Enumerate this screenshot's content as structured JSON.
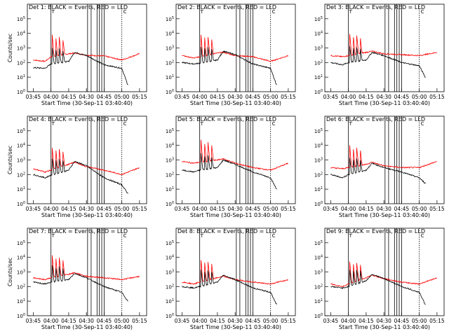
{
  "figure": {
    "start_time_label": "Start Time (30-Sep-11 03:40:40)"
  },
  "colors": {
    "events": "#000000",
    "lld": "#ff0000"
  },
  "chart_data": [
    {
      "type": "line",
      "title": "Det 1: BLACK = Events, RED = LLD",
      "ylabel": "Counts/sec",
      "xlabel": "Start Time (30-Sep-11 03:40:40)",
      "ylim": [
        1,
        1000000
      ],
      "yscale": "log",
      "x_ticks": [
        "03:45",
        "04:00",
        "04:15",
        "04:30",
        "04:45",
        "05:00",
        "05:15"
      ],
      "y_ticks": [
        "10^0",
        "10^1",
        "10^2",
        "10^3",
        "10^4",
        "10^5"
      ],
      "markers": {
        "solid": [
          "04:00",
          "04:31",
          "04:34",
          "04:39",
          "04:41",
          "04:43",
          "04:45"
        ],
        "dotted": [
          "05:00"
        ],
        "labels": [
          "T",
          "C"
        ]
      },
      "series": [
        {
          "name": "Events",
          "color": "#000000",
          "x": [
            "03:45",
            "03:55",
            "04:00",
            "04:15",
            "04:20",
            "04:30",
            "04:45",
            "05:00",
            "05:05"
          ],
          "values": [
            45,
            40,
            80,
            120,
            500,
            300,
            70,
            40,
            3
          ]
        },
        {
          "name": "LLD",
          "color": "#ff0000",
          "x": [
            "03:45",
            "03:55",
            "04:00",
            "04:15",
            "04:20",
            "04:30",
            "04:45",
            "05:00",
            "05:15"
          ],
          "values": [
            150,
            120,
            250,
            400,
            450,
            320,
            280,
            150,
            400
          ]
        }
      ]
    },
    {
      "type": "line",
      "title": "Det 2: BLACK = Events, RED = LLD",
      "ylabel": "",
      "xlabel": "Start Time (30-Sep-11 03:40:40)",
      "ylim": [
        1,
        1000000
      ],
      "yscale": "log",
      "x_ticks": [
        "03:45",
        "04:00",
        "04:15",
        "04:30",
        "04:45",
        "05:00",
        "05:15"
      ],
      "y_ticks": [
        "10^0",
        "10^1",
        "10^2",
        "10^3",
        "10^4",
        "10^5"
      ],
      "markers": {
        "solid": [
          "04:00",
          "04:31",
          "04:34",
          "04:39",
          "04:41",
          "04:43",
          "04:45"
        ],
        "dotted": [
          "05:00"
        ],
        "labels": [
          "T",
          "C"
        ]
      },
      "series": [
        {
          "name": "Events",
          "color": "#000000",
          "x": [
            "03:45",
            "03:55",
            "04:00",
            "04:15",
            "04:20",
            "04:30",
            "04:45",
            "05:00",
            "05:05"
          ],
          "values": [
            100,
            80,
            90,
            150,
            600,
            350,
            80,
            40,
            3
          ]
        },
        {
          "name": "LLD",
          "color": "#ff0000",
          "x": [
            "03:45",
            "03:55",
            "04:00",
            "04:15",
            "04:20",
            "04:30",
            "04:45",
            "05:00",
            "05:15"
          ],
          "values": [
            300,
            200,
            250,
            450,
            500,
            300,
            250,
            120,
            300
          ]
        }
      ]
    },
    {
      "type": "line",
      "title": "Det 3: BLACK = Events, RED = LLD",
      "ylabel": "",
      "xlabel": "Start Time (30-Sep-11 03:40:40)",
      "ylim": [
        1,
        1000000
      ],
      "yscale": "log",
      "x_ticks": [
        "03:45",
        "04:00",
        "04:15",
        "04:30",
        "04:45",
        "05:00",
        "05:15"
      ],
      "y_ticks": [
        "10^0",
        "10^1",
        "10^2",
        "10^3",
        "10^4",
        "10^5"
      ],
      "markers": {
        "solid": [
          "04:00",
          "04:31",
          "04:34",
          "04:39",
          "04:41",
          "04:43",
          "04:45"
        ],
        "dotted": [
          "05:00"
        ],
        "labels": [
          "T",
          "C"
        ]
      },
      "series": [
        {
          "name": "Events",
          "color": "#000000",
          "x": [
            "03:45",
            "03:55",
            "04:00",
            "04:15",
            "04:20",
            "04:30",
            "04:45",
            "05:00",
            "05:05"
          ],
          "values": [
            100,
            70,
            100,
            150,
            500,
            300,
            100,
            60,
            10
          ]
        },
        {
          "name": "LLD",
          "color": "#ff0000",
          "x": [
            "03:45",
            "03:55",
            "04:00",
            "04:15",
            "04:20",
            "04:30",
            "04:45",
            "05:00",
            "05:15"
          ],
          "values": [
            300,
            250,
            300,
            500,
            600,
            400,
            350,
            300,
            500
          ]
        }
      ]
    },
    {
      "type": "line",
      "title": "Det 4: BLACK = Events, RED = LLD",
      "ylabel": "Counts/sec",
      "xlabel": "Start Time (30-Sep-11 03:40:40)",
      "ylim": [
        1,
        1000000
      ],
      "yscale": "log",
      "x_ticks": [
        "03:45",
        "04:00",
        "04:15",
        "04:30",
        "04:45",
        "05:00",
        "05:15"
      ],
      "y_ticks": [
        "10^0",
        "10^1",
        "10^2",
        "10^3",
        "10^4",
        "10^5"
      ],
      "markers": {
        "solid": [
          "04:00",
          "04:31",
          "04:34",
          "04:39",
          "04:41",
          "04:43",
          "04:45"
        ],
        "dotted": [
          "05:00"
        ],
        "labels": [
          "T",
          "C"
        ]
      },
      "series": [
        {
          "name": "Events",
          "color": "#000000",
          "x": [
            "03:45",
            "03:55",
            "04:00",
            "04:15",
            "04:20",
            "04:30",
            "04:45",
            "05:00",
            "05:05"
          ],
          "values": [
            100,
            60,
            90,
            200,
            800,
            400,
            60,
            20,
            5
          ]
        },
        {
          "name": "LLD",
          "color": "#ff0000",
          "x": [
            "03:45",
            "03:55",
            "04:00",
            "04:15",
            "04:20",
            "04:30",
            "04:45",
            "05:00",
            "05:15"
          ],
          "values": [
            250,
            150,
            200,
            500,
            700,
            350,
            200,
            100,
            300
          ]
        }
      ]
    },
    {
      "type": "line",
      "title": "Det 5: BLACK = Events, RED = LLD",
      "ylabel": "",
      "xlabel": "Start Time (30-Sep-11 03:40:40)",
      "ylim": [
        1,
        1000000
      ],
      "yscale": "log",
      "x_ticks": [
        "03:45",
        "04:00",
        "04:15",
        "04:30",
        "04:45",
        "05:00",
        "05:15"
      ],
      "y_ticks": [
        "10^0",
        "10^1",
        "10^2",
        "10^3",
        "10^4",
        "10^5"
      ],
      "markers": {
        "solid": [
          "04:00",
          "04:31",
          "04:34",
          "04:39",
          "04:41",
          "04:43",
          "04:45"
        ],
        "dotted": [
          "05:00"
        ],
        "labels": [
          "T",
          "C"
        ]
      },
      "series": [
        {
          "name": "Events",
          "color": "#000000",
          "x": [
            "03:45",
            "03:55",
            "04:00",
            "04:15",
            "04:20",
            "04:30",
            "04:45",
            "05:00",
            "05:05"
          ],
          "values": [
            200,
            150,
            200,
            300,
            1000,
            500,
            150,
            60,
            10
          ]
        },
        {
          "name": "LLD",
          "color": "#ff0000",
          "x": [
            "03:45",
            "03:55",
            "04:00",
            "04:15",
            "04:20",
            "04:30",
            "04:45",
            "05:00",
            "05:15"
          ],
          "values": [
            800,
            600,
            700,
            1000,
            1200,
            600,
            300,
            200,
            600
          ]
        }
      ]
    },
    {
      "type": "line",
      "title": "Det 6: BLACK = Events, RED = LLD",
      "ylabel": "",
      "xlabel": "Start Time (30-Sep-11 03:40:40)",
      "ylim": [
        1,
        1000000
      ],
      "yscale": "log",
      "x_ticks": [
        "03:45",
        "04:00",
        "04:15",
        "04:30",
        "04:45",
        "05:00",
        "05:15"
      ],
      "y_ticks": [
        "10^0",
        "10^1",
        "10^2",
        "10^3",
        "10^4",
        "10^5"
      ],
      "markers": {
        "solid": [
          "04:00",
          "04:31",
          "04:34",
          "04:39",
          "04:41",
          "04:43",
          "04:45"
        ],
        "dotted": [
          "05:00"
        ],
        "labels": [
          "T",
          "C"
        ]
      },
      "series": [
        {
          "name": "Events",
          "color": "#000000",
          "x": [
            "03:45",
            "03:55",
            "04:00",
            "04:15",
            "04:20",
            "04:30",
            "04:45",
            "05:00",
            "05:05"
          ],
          "values": [
            100,
            60,
            100,
            200,
            600,
            300,
            150,
            60,
            25
          ]
        },
        {
          "name": "LLD",
          "color": "#ff0000",
          "x": [
            "03:45",
            "03:55",
            "04:00",
            "04:15",
            "04:20",
            "04:30",
            "04:45",
            "05:00",
            "05:15"
          ],
          "values": [
            300,
            250,
            300,
            500,
            700,
            400,
            300,
            300,
            800
          ]
        }
      ]
    },
    {
      "type": "line",
      "title": "Det 7: BLACK = Events, RED = LLD",
      "ylabel": "Counts/sec",
      "xlabel": "Start Time (30-Sep-11 03:40:40)",
      "ylim": [
        1,
        1000000
      ],
      "yscale": "log",
      "x_ticks": [
        "03:45",
        "04:00",
        "04:15",
        "04:30",
        "04:45",
        "05:00",
        "05:15"
      ],
      "y_ticks": [
        "10^0",
        "10^1",
        "10^2",
        "10^3",
        "10^4",
        "10^5"
      ],
      "markers": {
        "solid": [
          "04:00",
          "04:31",
          "04:34",
          "04:39",
          "04:41",
          "04:43",
          "04:45"
        ],
        "dotted": [
          "05:00"
        ],
        "labels": [
          "T",
          "C"
        ]
      },
      "series": [
        {
          "name": "Events",
          "color": "#000000",
          "x": [
            "03:45",
            "03:55",
            "04:00",
            "04:15",
            "04:20",
            "04:30",
            "04:45",
            "05:00",
            "05:05"
          ],
          "values": [
            200,
            150,
            200,
            300,
            800,
            400,
            100,
            40,
            10
          ]
        },
        {
          "name": "LLD",
          "color": "#ff0000",
          "x": [
            "03:45",
            "03:55",
            "04:00",
            "04:15",
            "04:20",
            "04:30",
            "04:45",
            "05:00",
            "05:15"
          ],
          "values": [
            400,
            300,
            400,
            700,
            900,
            500,
            400,
            300,
            500
          ]
        }
      ]
    },
    {
      "type": "line",
      "title": "Det 8: BLACK = Events, RED = LLD",
      "ylabel": "",
      "xlabel": "Start Time (30-Sep-11 03:40:40)",
      "ylim": [
        1,
        1000000
      ],
      "yscale": "log",
      "x_ticks": [
        "03:45",
        "04:00",
        "04:15",
        "04:30",
        "04:45",
        "05:00",
        "05:15"
      ],
      "y_ticks": [
        "10^0",
        "10^1",
        "10^2",
        "10^3",
        "10^4",
        "10^5"
      ],
      "markers": {
        "solid": [
          "04:00",
          "04:31",
          "04:34",
          "04:39",
          "04:41",
          "04:43",
          "04:45"
        ],
        "dotted": [
          "05:00"
        ],
        "labels": [
          "T",
          "C"
        ]
      },
      "series": [
        {
          "name": "Events",
          "color": "#000000",
          "x": [
            "03:45",
            "03:55",
            "04:00",
            "04:15",
            "04:20",
            "04:30",
            "04:45",
            "05:00",
            "05:05"
          ],
          "values": [
            100,
            80,
            100,
            200,
            600,
            300,
            80,
            40,
            6
          ]
        },
        {
          "name": "LLD",
          "color": "#ff0000",
          "x": [
            "03:45",
            "03:55",
            "04:00",
            "04:15",
            "04:20",
            "04:30",
            "04:45",
            "05:00",
            "05:15"
          ],
          "values": [
            200,
            150,
            200,
            400,
            500,
            300,
            200,
            150,
            300
          ]
        }
      ]
    },
    {
      "type": "line",
      "title": "Det 9: BLACK = Events, RED = LLD",
      "ylabel": "",
      "xlabel": "Start Time (30-Sep-11 03:40:40)",
      "ylim": [
        1,
        1000000
      ],
      "yscale": "log",
      "x_ticks": [
        "03:45",
        "04:00",
        "04:15",
        "04:30",
        "04:45",
        "05:00",
        "05:15"
      ],
      "y_ticks": [
        "10^0",
        "10^1",
        "10^2",
        "10^3",
        "10^4",
        "10^5"
      ],
      "markers": {
        "solid": [
          "04:00",
          "04:31",
          "04:34",
          "04:39",
          "04:41",
          "04:43",
          "04:45"
        ],
        "dotted": [
          "05:00"
        ],
        "labels": [
          "T",
          "C"
        ]
      },
      "series": [
        {
          "name": "Events",
          "color": "#000000",
          "x": [
            "03:45",
            "03:55",
            "04:00",
            "04:15",
            "04:20",
            "04:30",
            "04:45",
            "05:00",
            "05:05"
          ],
          "values": [
            100,
            80,
            100,
            250,
            700,
            350,
            100,
            40,
            6
          ]
        },
        {
          "name": "LLD",
          "color": "#ff0000",
          "x": [
            "03:45",
            "03:55",
            "04:00",
            "04:15",
            "04:20",
            "04:30",
            "04:45",
            "05:00",
            "05:15"
          ],
          "values": [
            150,
            100,
            150,
            400,
            600,
            350,
            200,
            150,
            400
          ]
        }
      ]
    }
  ]
}
